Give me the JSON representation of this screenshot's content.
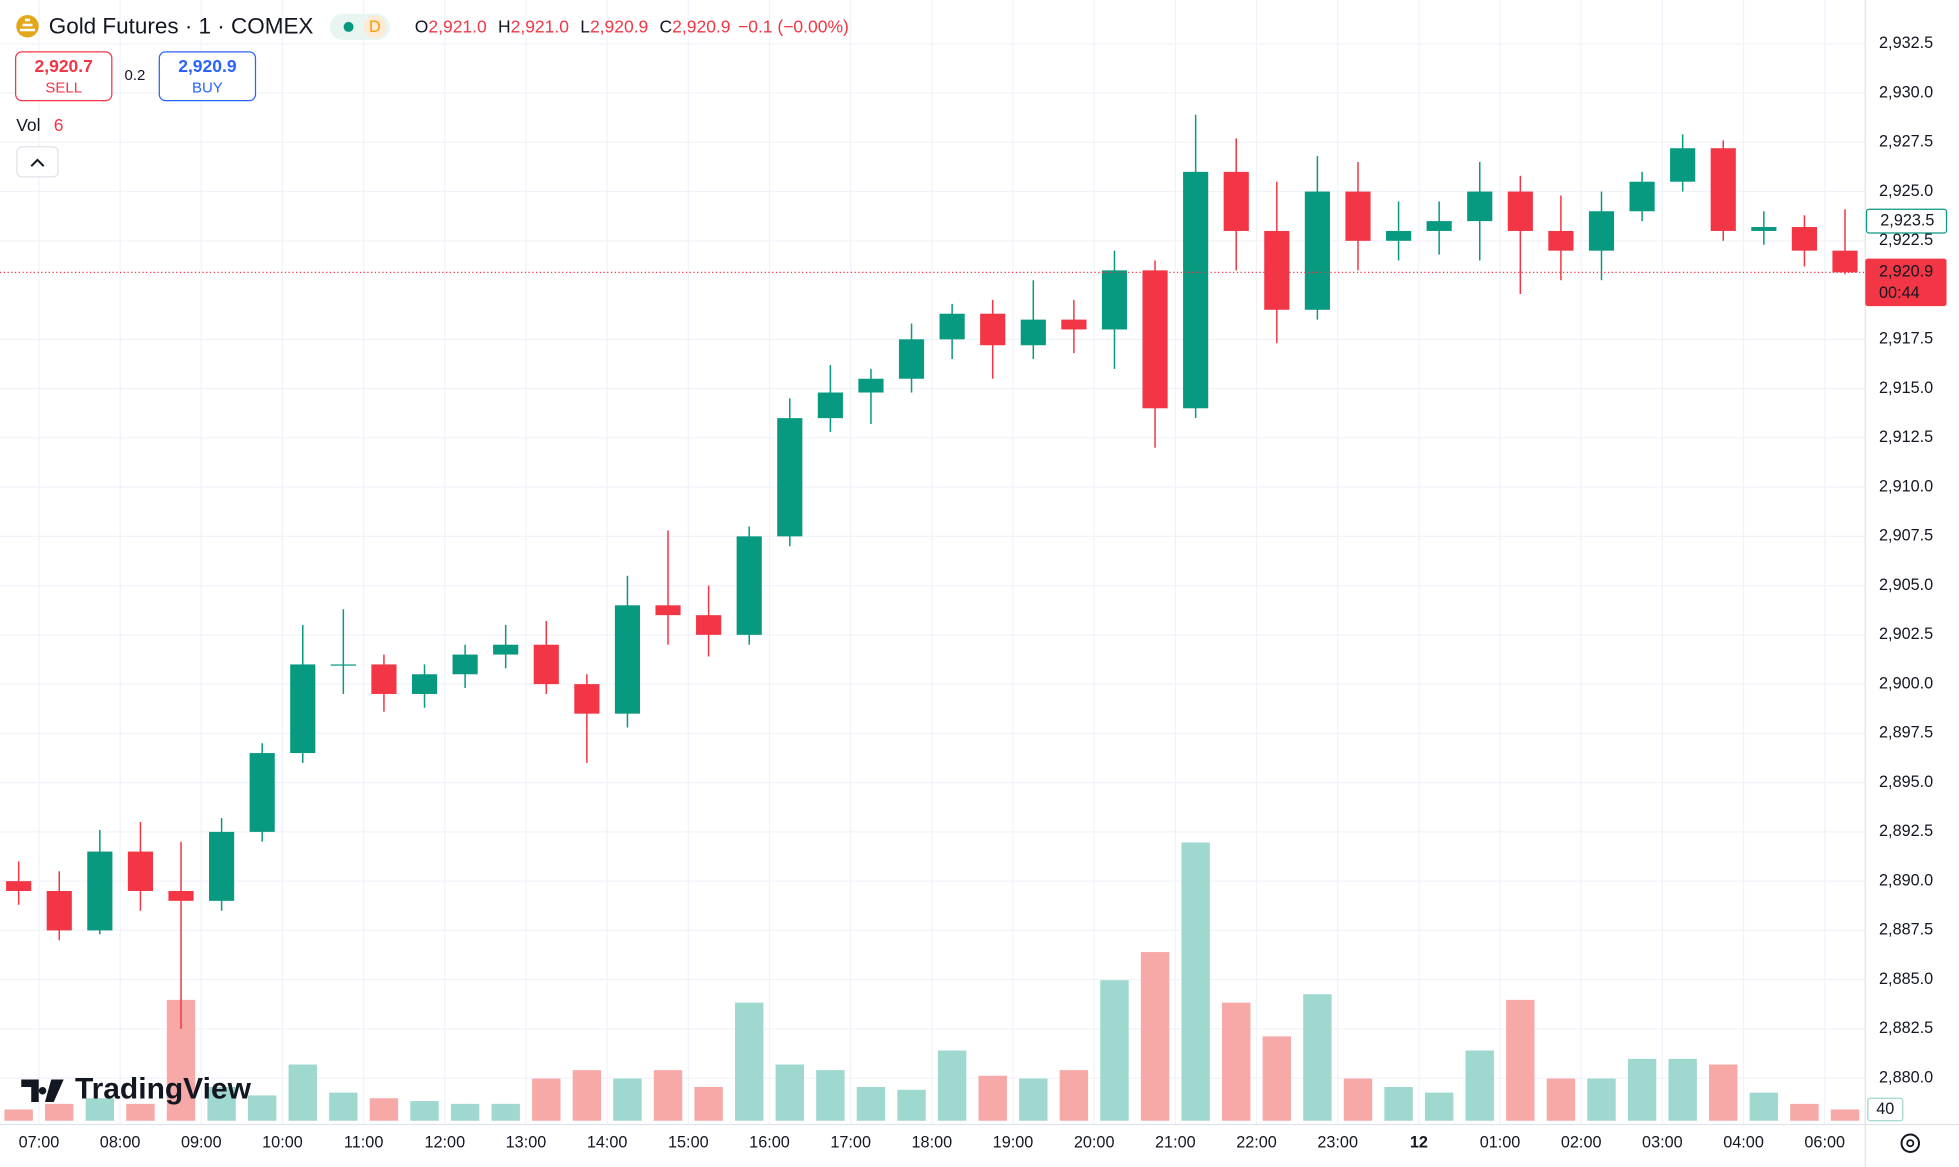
{
  "header": {
    "symbol": "Gold Futures · 1 · COMEX",
    "status": "D",
    "ohlc": [
      {
        "key": "O",
        "value": "2,921.0"
      },
      {
        "key": "H",
        "value": "2,921.0"
      },
      {
        "key": "L",
        "value": "2,920.9"
      },
      {
        "key": "C",
        "value": "2,920.9"
      }
    ],
    "change": "−0.1 (−0.00%)",
    "sell": {
      "price": "2,920.7",
      "label": "SELL"
    },
    "spread": "0.2",
    "buy": {
      "price": "2,920.9",
      "label": "BUY"
    },
    "volume_legend": {
      "label": "Vol",
      "value": "6"
    },
    "brand": "TradingView"
  },
  "chart_data": {
    "type": "candlestick",
    "x": [
      -0.25,
      0.25,
      0.75,
      1.25,
      1.75,
      2.25,
      2.75,
      3.25,
      3.75,
      4.25,
      4.75,
      5.25,
      5.75,
      6.25,
      6.75,
      7.25,
      7.75,
      8.25,
      8.75,
      9.25,
      9.75,
      10.25,
      10.75,
      11.25,
      11.75,
      12.25,
      12.75,
      13.25,
      13.75,
      14.25,
      14.75,
      15.25,
      15.75,
      16.25,
      16.75,
      17.25,
      17.75,
      18.25,
      18.75,
      19.25,
      19.75,
      20.25,
      20.75,
      21.25,
      21.75,
      22.25
    ],
    "open": [
      2890.0,
      2889.5,
      2887.5,
      2891.5,
      2889.5,
      2889.0,
      2892.5,
      2896.5,
      2901.0,
      2901.0,
      2899.5,
      2900.5,
      2901.5,
      2902.0,
      2900.0,
      2898.5,
      2904.0,
      2903.5,
      2902.5,
      2907.5,
      2913.5,
      2914.8,
      2915.5,
      2917.5,
      2918.8,
      2917.2,
      2918.5,
      2918.0,
      2921.0,
      2914.0,
      2926.0,
      2923.0,
      2919.0,
      2925.0,
      2922.5,
      2923.0,
      2923.5,
      2925.0,
      2923.0,
      2922.0,
      2924.0,
      2925.5,
      2927.2,
      2923.0,
      2923.2,
      2922.0
    ],
    "high": [
      2891.0,
      2890.5,
      2892.6,
      2893.0,
      2892.0,
      2893.2,
      2897.0,
      2903.0,
      2903.8,
      2901.5,
      2901.0,
      2902.0,
      2903.0,
      2903.2,
      2900.5,
      2905.5,
      2907.8,
      2905.0,
      2908.0,
      2914.5,
      2916.2,
      2916.0,
      2918.3,
      2919.3,
      2919.5,
      2920.5,
      2919.5,
      2922.0,
      2921.5,
      2928.9,
      2927.7,
      2925.5,
      2926.8,
      2926.5,
      2924.5,
      2924.5,
      2926.5,
      2925.8,
      2924.8,
      2925.0,
      2926.0,
      2927.9,
      2927.6,
      2924.0,
      2923.8,
      2924.1
    ],
    "low": [
      2888.8,
      2887.0,
      2887.3,
      2888.5,
      2882.5,
      2888.5,
      2892.0,
      2896.0,
      2899.5,
      2898.6,
      2898.8,
      2899.8,
      2900.8,
      2899.5,
      2896.0,
      2897.8,
      2902.0,
      2901.4,
      2902.0,
      2907.0,
      2912.8,
      2913.2,
      2914.8,
      2916.5,
      2915.5,
      2916.5,
      2916.8,
      2916.0,
      2912.0,
      2913.5,
      2921.0,
      2917.3,
      2918.5,
      2921.0,
      2921.5,
      2921.8,
      2921.5,
      2919.8,
      2920.5,
      2920.5,
      2923.5,
      2925.0,
      2922.5,
      2922.3,
      2921.2,
      2920.8
    ],
    "close": [
      2889.5,
      2887.5,
      2891.5,
      2889.5,
      2889.0,
      2892.5,
      2896.5,
      2901.0,
      2901.0,
      2899.5,
      2900.5,
      2901.5,
      2902.0,
      2900.0,
      2898.5,
      2904.0,
      2903.5,
      2902.5,
      2907.5,
      2913.5,
      2914.8,
      2915.5,
      2917.5,
      2918.8,
      2917.2,
      2918.5,
      2918.0,
      2921.0,
      2914.0,
      2926.0,
      2923.0,
      2919.0,
      2925.0,
      2922.5,
      2923.0,
      2923.5,
      2925.0,
      2923.0,
      2922.0,
      2924.0,
      2925.5,
      2927.2,
      2923.0,
      2923.2,
      2922.0,
      2920.9
    ],
    "volume": [
      40,
      60,
      80,
      60,
      430,
      120,
      90,
      200,
      100,
      80,
      70,
      60,
      60,
      150,
      180,
      150,
      180,
      120,
      420,
      200,
      180,
      120,
      110,
      250,
      160,
      150,
      180,
      500,
      600,
      990,
      420,
      300,
      450,
      150,
      120,
      100,
      250,
      430,
      150,
      150,
      220,
      220,
      200,
      100,
      60,
      40
    ],
    "up_color": "#089981",
    "down_color": "#f23645",
    "vol_up_color": "#9fd8cf",
    "vol_down_color": "#f7a9a7",
    "xlim": [
      -0.48,
      22.5
    ],
    "xticks": [
      {
        "value": 0,
        "label": "07:00"
      },
      {
        "value": 1,
        "label": "08:00"
      },
      {
        "value": 2,
        "label": "09:00"
      },
      {
        "value": 3,
        "label": "10:00"
      },
      {
        "value": 4,
        "label": "11:00"
      },
      {
        "value": 5,
        "label": "12:00"
      },
      {
        "value": 6,
        "label": "13:00"
      },
      {
        "value": 7,
        "label": "14:00"
      },
      {
        "value": 8,
        "label": "15:00"
      },
      {
        "value": 9,
        "label": "16:00"
      },
      {
        "value": 10,
        "label": "17:00"
      },
      {
        "value": 11,
        "label": "18:00"
      },
      {
        "value": 12,
        "label": "19:00"
      },
      {
        "value": 13,
        "label": "20:00"
      },
      {
        "value": 14,
        "label": "21:00"
      },
      {
        "value": 15,
        "label": "22:00"
      },
      {
        "value": 16,
        "label": "23:00"
      },
      {
        "value": 17,
        "label": "12"
      },
      {
        "value": 18,
        "label": "01:00"
      },
      {
        "value": 19,
        "label": "02:00"
      },
      {
        "value": 20,
        "label": "03:00"
      },
      {
        "value": 21,
        "label": "04:00"
      },
      {
        "value": 22,
        "label": "06:00"
      }
    ],
    "ylim": [
      2877.84,
      2934.72
    ],
    "yticks": [
      {
        "value": 2932.5,
        "label": "2,932.5"
      },
      {
        "value": 2930,
        "label": "2,930.0"
      },
      {
        "value": 2927.5,
        "label": "2,927.5"
      },
      {
        "value": 2925,
        "label": "2,925.0"
      },
      {
        "value": 2922.5,
        "label": "2,922.5"
      },
      {
        "value": 2917.5,
        "label": "2,917.5"
      },
      {
        "value": 2915,
        "label": "2,915.0"
      },
      {
        "value": 2912.5,
        "label": "2,912.5"
      },
      {
        "value": 2910,
        "label": "2,910.0"
      },
      {
        "value": 2907.5,
        "label": "2,907.5"
      },
      {
        "value": 2905,
        "label": "2,905.0"
      },
      {
        "value": 2902.5,
        "label": "2,902.5"
      },
      {
        "value": 2900,
        "label": "2,900.0"
      },
      {
        "value": 2897.5,
        "label": "2,897.5"
      },
      {
        "value": 2895,
        "label": "2,895.0"
      },
      {
        "value": 2892.5,
        "label": "2,892.5"
      },
      {
        "value": 2890,
        "label": "2,890.0"
      },
      {
        "value": 2887.5,
        "label": "2,887.5"
      },
      {
        "value": 2885,
        "label": "2,885.0"
      },
      {
        "value": 2882.5,
        "label": "2,882.5"
      },
      {
        "value": 2880,
        "label": "2,880.0"
      }
    ],
    "vol_ylim": [
      0,
      3987
    ],
    "vol_yticks": [
      40
    ],
    "grid": true,
    "marker_price": {
      "value": 2923.5,
      "label": "2,923.5"
    },
    "last_price": {
      "value": 2920.9,
      "label": "2,920.9",
      "countdown": "00:44"
    }
  }
}
